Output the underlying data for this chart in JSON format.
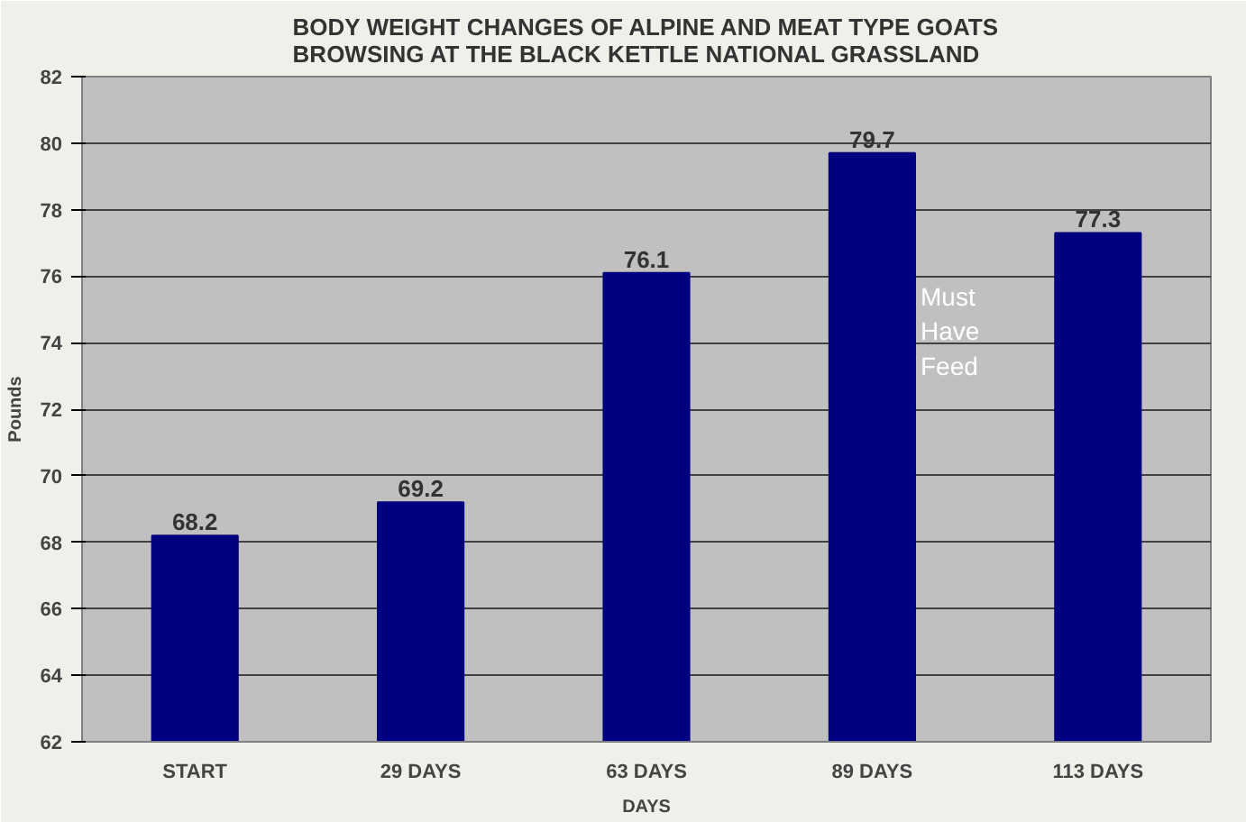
{
  "chart_data": {
    "type": "bar",
    "title": "BODY WEIGHT CHANGES OF ALPINE AND MEAT TYPE GOATS\nBROWSING AT THE BLACK KETTLE NATIONAL GRASSLAND",
    "xlabel": "DAYS",
    "ylabel": "Pounds",
    "categories": [
      "START",
      "29 DAYS",
      "63 DAYS",
      "89 DAYS",
      "113 DAYS"
    ],
    "values": [
      68.2,
      69.2,
      76.1,
      79.7,
      77.3
    ],
    "color": "#000080",
    "ylim": [
      62,
      82
    ],
    "yticks": [
      62,
      64,
      66,
      68,
      70,
      72,
      74,
      76,
      78,
      80,
      82
    ],
    "grid": "y",
    "data_labels": true,
    "annotations": [
      "Must\nHave\nFeed"
    ]
  }
}
